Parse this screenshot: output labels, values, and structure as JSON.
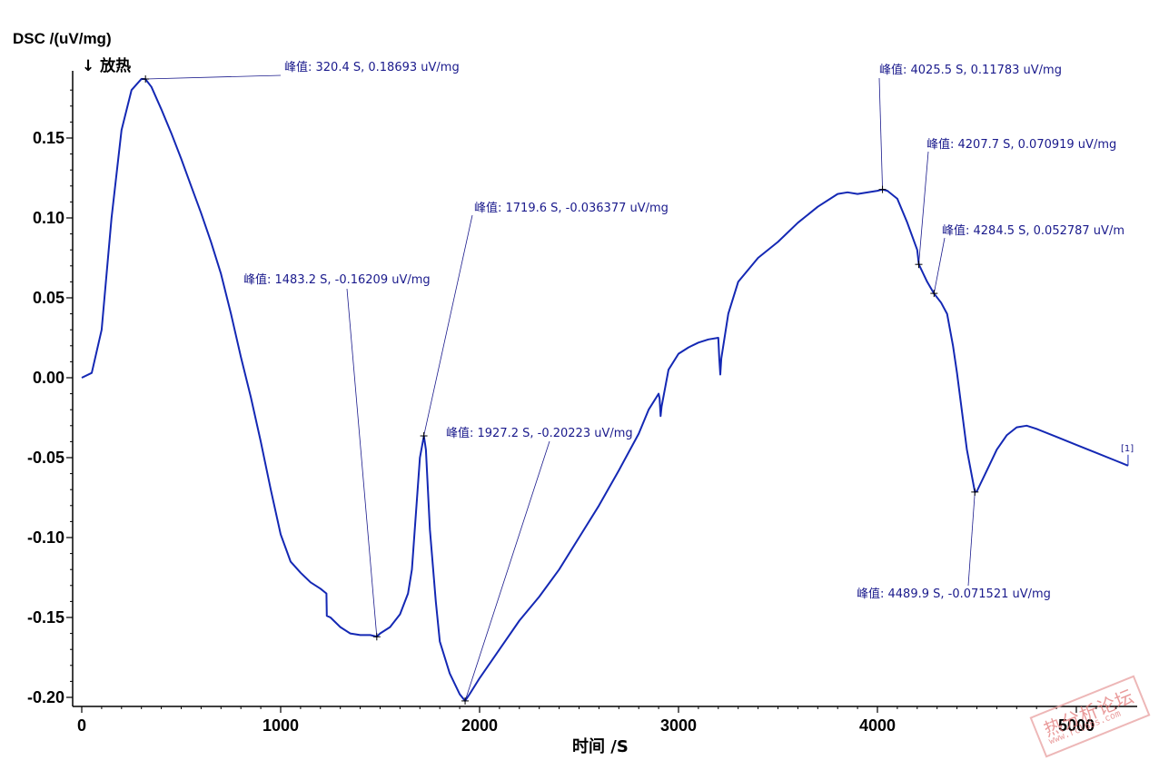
{
  "chart_data": {
    "type": "line",
    "ylabel": "DSC /(uV/mg)",
    "ylabel_sub": "↓ 放热",
    "xlabel": "时间 /S",
    "xlim": [
      0,
      5300
    ],
    "ylim": [
      -0.205,
      0.19
    ],
    "x_ticks": [
      0,
      1000,
      2000,
      3000,
      4000,
      5000
    ],
    "y_ticks": [
      0.15,
      0.1,
      0.05,
      0.0,
      -0.05,
      -0.1,
      -0.15,
      -0.2
    ],
    "y_tick_labels": [
      "0.15",
      "0.10",
      "0.05",
      "0.00",
      "-0.05",
      "-0.10",
      "-0.15",
      "-0.20"
    ],
    "series": [
      {
        "name": "",
        "end_label": "[1]",
        "color": "#1428b4",
        "x": [
          0,
          50,
          100,
          150,
          200,
          250,
          300,
          320,
          350,
          400,
          450,
          500,
          550,
          600,
          650,
          700,
          750,
          800,
          850,
          900,
          950,
          1000,
          1050,
          1100,
          1150,
          1200,
          1230,
          1232,
          1250,
          1300,
          1350,
          1400,
          1450,
          1483,
          1500,
          1550,
          1600,
          1640,
          1660,
          1680,
          1700,
          1720,
          1730,
          1750,
          1780,
          1800,
          1850,
          1900,
          1927,
          1950,
          2000,
          2100,
          2200,
          2300,
          2400,
          2500,
          2600,
          2700,
          2800,
          2850,
          2900,
          2905,
          2910,
          2915,
          2950,
          3000,
          3050,
          3100,
          3150,
          3200,
          3205,
          3210,
          3215,
          3250,
          3300,
          3400,
          3500,
          3600,
          3700,
          3800,
          3850,
          3900,
          4000,
          4025,
          4050,
          4100,
          4150,
          4200,
          4208,
          4250,
          4284,
          4320,
          4350,
          4380,
          4400,
          4450,
          4490,
          4500,
          4550,
          4600,
          4650,
          4700,
          4750,
          4800,
          4900,
          5000,
          5100,
          5200,
          5260
        ],
        "y": [
          0.0,
          0.003,
          0.03,
          0.1,
          0.155,
          0.18,
          0.187,
          0.1869,
          0.182,
          0.168,
          0.153,
          0.137,
          0.12,
          0.103,
          0.085,
          0.065,
          0.04,
          0.013,
          -0.012,
          -0.04,
          -0.07,
          -0.098,
          -0.115,
          -0.122,
          -0.128,
          -0.132,
          -0.135,
          -0.149,
          -0.15,
          -0.156,
          -0.16,
          -0.161,
          -0.161,
          -0.162,
          -0.16,
          -0.156,
          -0.148,
          -0.135,
          -0.12,
          -0.085,
          -0.05,
          -0.0364,
          -0.045,
          -0.095,
          -0.14,
          -0.165,
          -0.185,
          -0.198,
          -0.2022,
          -0.198,
          -0.188,
          -0.17,
          -0.152,
          -0.137,
          -0.12,
          -0.1,
          -0.08,
          -0.058,
          -0.035,
          -0.02,
          -0.01,
          -0.013,
          -0.024,
          -0.018,
          0.005,
          0.015,
          0.019,
          0.022,
          0.024,
          0.025,
          0.012,
          0.002,
          0.012,
          0.04,
          0.06,
          0.075,
          0.085,
          0.097,
          0.107,
          0.115,
          0.116,
          0.115,
          0.117,
          0.1178,
          0.117,
          0.112,
          0.097,
          0.08,
          0.0709,
          0.06,
          0.0528,
          0.047,
          0.04,
          0.02,
          0.003,
          -0.045,
          -0.0715,
          -0.071,
          -0.058,
          -0.045,
          -0.036,
          -0.031,
          -0.03,
          -0.032,
          -0.037,
          -0.042,
          -0.047,
          -0.052,
          -0.055
        ]
      }
    ],
    "annotations": [
      {
        "text": "峰值: 320.4 S, 0.18693 uV/mg",
        "x": 320.4,
        "y": 0.18693
      },
      {
        "text": "峰值: 1483.2 S, -0.16209 uV/mg",
        "x": 1483.2,
        "y": -0.16209
      },
      {
        "text": "峰值: 1719.6 S, -0.036377 uV/mg",
        "x": 1719.6,
        "y": -0.036377
      },
      {
        "text": "峰值: 1927.2 S, -0.20223 uV/mg",
        "x": 1927.2,
        "y": -0.20223
      },
      {
        "text": "峰值: 4025.5 S, 0.11783 uV/mg",
        "x": 4025.5,
        "y": 0.11783
      },
      {
        "text": "峰值: 4207.7 S, 0.070919 uV/mg",
        "x": 4207.7,
        "y": 0.070919
      },
      {
        "text": "峰值: 4284.5 S, 0.052787 uV/m",
        "x": 4284.5,
        "y": 0.052787
      },
      {
        "text": "峰值: 4489.9 S, -0.071521 uV/mg",
        "x": 4489.9,
        "y": -0.071521
      }
    ]
  },
  "watermark": {
    "text": "热分析论坛",
    "url": "www.rclbbs.com"
  }
}
